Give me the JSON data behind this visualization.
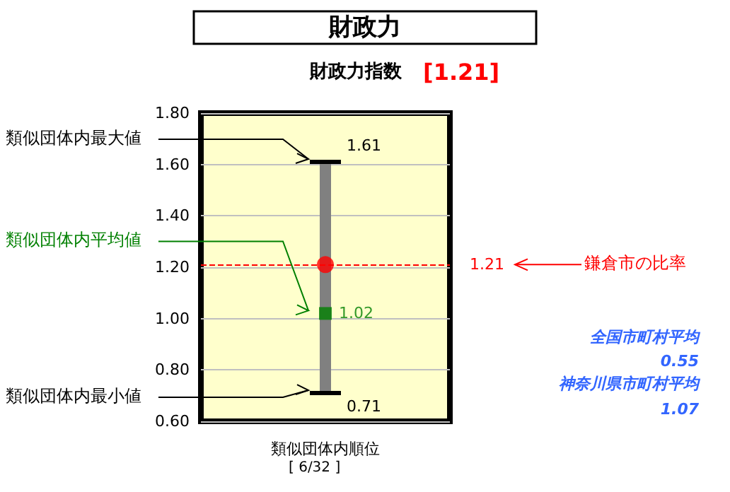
{
  "chart_data": {
    "type": "scatter",
    "title": "財政力",
    "subtitle": "財政力指数",
    "xlabel": "類似団体内順位",
    "categories": [
      null
    ],
    "series": [
      {
        "color": "#008000",
        "marker": "square",
        "values": [
          1.02
        ],
        "errors": [
          [
            0.71,
            1.61
          ]
        ],
        "value_labels": [
          "1.02"
        ]
      },
      {
        "color": "#ff0000",
        "marker": "circle",
        "values": [
          1.21
        ]
      }
    ],
    "ylim": [
      0.6,
      1.8
    ],
    "yticks": [
      {
        "value": 0.6,
        "label": "0.60"
      },
      {
        "value": 0.8,
        "label": "0.80"
      },
      {
        "value": 1.0,
        "label": "1.00"
      },
      {
        "value": 1.2,
        "label": "1.20"
      },
      {
        "value": 1.4,
        "label": "1.40"
      },
      {
        "value": 1.6,
        "label": "1.60"
      },
      {
        "value": 1.8,
        "label": "1.80"
      }
    ],
    "grid": "y",
    "ref_lines": [
      {
        "axis": "y",
        "value": 1.21,
        "label": "1.21",
        "color": "#ff0000",
        "line_style": "dashed"
      }
    ],
    "annotations": [
      "[1.21]",
      "[ 6/32 ]",
      "類似団体内最大値",
      "類似団体内平均値",
      "類似団体内最小値",
      "鎌倉市の比率",
      "全国市町村平均",
      "0.55",
      "神奈川県市町村平均",
      "1.07",
      "1.61",
      "0.71"
    ]
  }
}
